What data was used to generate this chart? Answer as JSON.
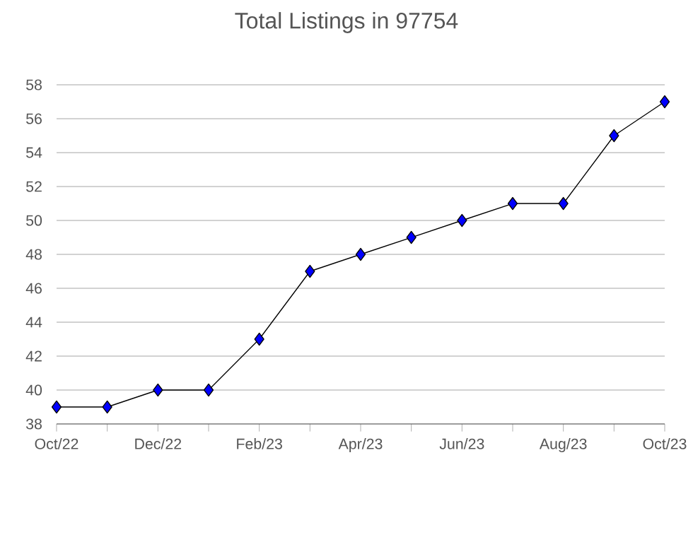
{
  "chart_data": {
    "type": "line",
    "title": "Total Listings in 97754",
    "categories": [
      "Oct/22",
      null,
      "Dec/22",
      null,
      "Feb/23",
      null,
      "Apr/23",
      null,
      "Jun/23",
      null,
      "Aug/23",
      null,
      "Oct/23"
    ],
    "series": [
      {
        "color": "#0000ff",
        "values": [
          39,
          39,
          40,
          40,
          43,
          47,
          48,
          49,
          50,
          51,
          51,
          55,
          57
        ]
      }
    ],
    "ylim": [
      38,
      58
    ],
    "yticks": [
      38,
      40,
      42,
      44,
      46,
      48,
      50,
      52,
      54,
      56,
      58
    ],
    "grid": "y",
    "marker": "diamond",
    "line_style": "solid"
  }
}
